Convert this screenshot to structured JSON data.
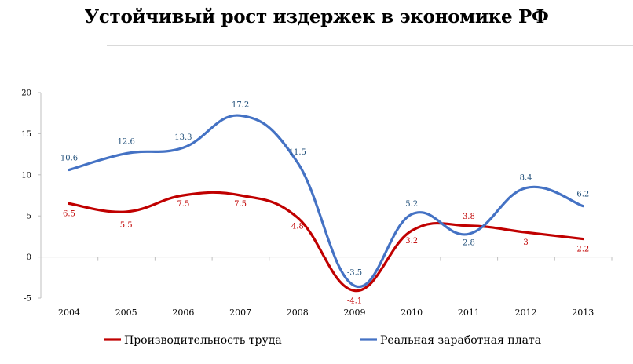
{
  "title": "Устойчивый рост издержек в экономике РФ",
  "chart_data": {
    "type": "line",
    "smooth": true,
    "categories": [
      "2004",
      "2005",
      "2006",
      "2007",
      "2008",
      "2009",
      "2010",
      "2011",
      "2012",
      "2013"
    ],
    "ylim": [
      -5,
      20
    ],
    "yticks": [
      -5,
      0,
      5,
      10,
      15,
      20
    ],
    "grid": false,
    "legend_position": "bottom",
    "series": [
      {
        "name": "Производительность труда",
        "color": "#c00000",
        "values": [
          6.5,
          5.5,
          7.5,
          7.5,
          4.8,
          -4.1,
          3.2,
          3.8,
          3,
          2.2
        ],
        "labels": [
          "6.5",
          "5.5",
          "7.5",
          "7.5",
          "4.8",
          "-4.1",
          "3.2",
          "3.8",
          "3",
          "2.2"
        ]
      },
      {
        "name": "Реальная заработная плата",
        "color": "#4472c4",
        "values": [
          10.6,
          12.6,
          13.3,
          17.2,
          11.5,
          -3.5,
          5.2,
          2.8,
          8.4,
          6.2
        ],
        "labels": [
          "10.6",
          "12.6",
          "13.3",
          "17.2",
          "11.5",
          "-3.5",
          "5.2",
          "2.8",
          "8.4",
          "6.2"
        ]
      }
    ]
  }
}
